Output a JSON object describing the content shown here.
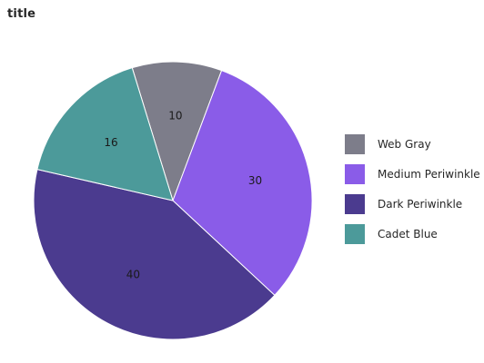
{
  "chart_data": {
    "type": "pie",
    "title": "title",
    "slices": [
      {
        "label": "Web Gray",
        "value": 10,
        "color": "#7d7d8a"
      },
      {
        "label": "Medium Periwinkle",
        "value": 30,
        "color": "#8a5ce8"
      },
      {
        "label": "Dark Periwinkle",
        "value": 40,
        "color": "#4b3b8f"
      },
      {
        "label": "Cadet Blue",
        "value": 16,
        "color": "#4c9a9a"
      }
    ],
    "legend_position": "right"
  }
}
